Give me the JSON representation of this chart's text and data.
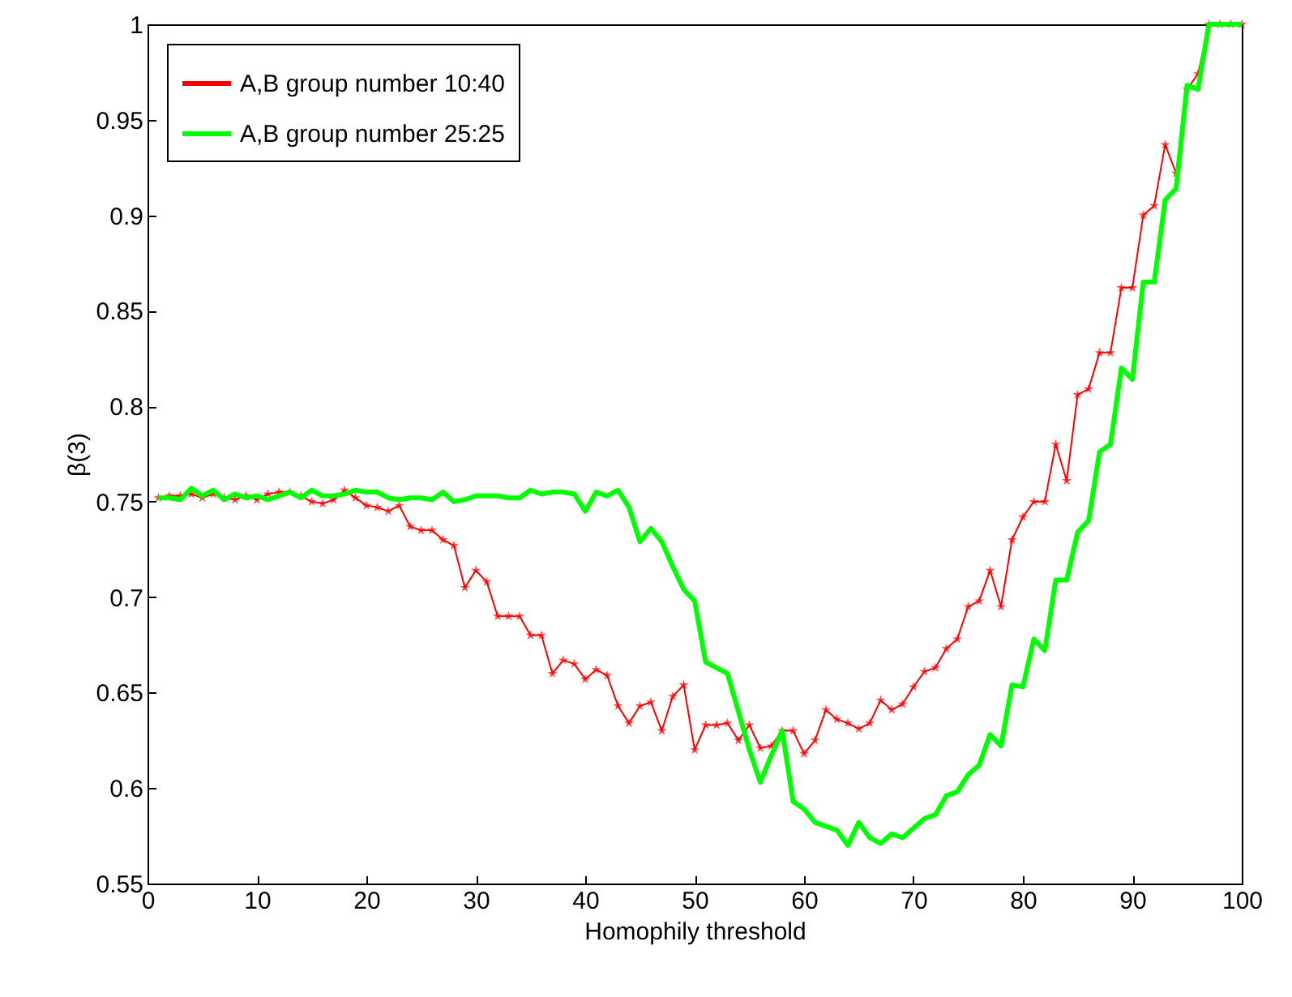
{
  "chart_data": {
    "type": "line",
    "xlabel": "Homophily threshold",
    "ylabel": "β(3)",
    "x": [
      1,
      2,
      3,
      4,
      5,
      6,
      7,
      8,
      9,
      10,
      11,
      12,
      13,
      14,
      15,
      16,
      17,
      18,
      19,
      20,
      21,
      22,
      23,
      24,
      25,
      26,
      27,
      28,
      29,
      30,
      31,
      32,
      33,
      34,
      35,
      36,
      37,
      38,
      39,
      40,
      41,
      42,
      43,
      44,
      45,
      46,
      47,
      48,
      49,
      50,
      51,
      52,
      53,
      54,
      55,
      56,
      57,
      58,
      59,
      60,
      61,
      62,
      63,
      64,
      65,
      66,
      67,
      68,
      69,
      70,
      71,
      72,
      73,
      74,
      75,
      76,
      77,
      78,
      79,
      80,
      81,
      82,
      83,
      84,
      85,
      86,
      87,
      88,
      89,
      90,
      91,
      92,
      93,
      94,
      95,
      96,
      97,
      98,
      99,
      100
    ],
    "series": [
      {
        "name": "A,B group number 10:40",
        "color": "#ff0000",
        "marker": "star",
        "values": [
          0.752,
          0.753,
          0.753,
          0.754,
          0.752,
          0.754,
          0.752,
          0.751,
          0.753,
          0.751,
          0.754,
          0.755,
          0.755,
          0.753,
          0.75,
          0.749,
          0.751,
          0.756,
          0.752,
          0.748,
          0.747,
          0.745,
          0.748,
          0.737,
          0.735,
          0.735,
          0.73,
          0.727,
          0.705,
          0.714,
          0.708,
          0.69,
          0.69,
          0.69,
          0.68,
          0.68,
          0.66,
          0.667,
          0.665,
          0.657,
          0.662,
          0.659,
          0.643,
          0.634,
          0.643,
          0.645,
          0.63,
          0.648,
          0.654,
          0.62,
          0.633,
          0.633,
          0.634,
          0.625,
          0.633,
          0.621,
          0.622,
          0.63,
          0.63,
          0.618,
          0.625,
          0.641,
          0.636,
          0.634,
          0.631,
          0.634,
          0.646,
          0.641,
          0.644,
          0.653,
          0.661,
          0.663,
          0.673,
          0.678,
          0.695,
          0.698,
          0.714,
          0.695,
          0.73,
          0.742,
          0.75,
          0.75,
          0.78,
          0.761,
          0.806,
          0.809,
          0.828,
          0.828,
          0.862,
          0.862,
          0.9,
          0.905,
          0.937,
          0.922,
          0.966,
          0.974,
          1,
          1,
          1,
          1
        ]
      },
      {
        "name": "A,B group number 25:25",
        "color": "#00ff00",
        "marker": "none",
        "values": [
          0.752,
          0.752,
          0.751,
          0.757,
          0.753,
          0.756,
          0.751,
          0.754,
          0.752,
          0.753,
          0.751,
          0.753,
          0.755,
          0.752,
          0.756,
          0.753,
          0.753,
          0.754,
          0.756,
          0.755,
          0.755,
          0.752,
          0.751,
          0.752,
          0.752,
          0.751,
          0.755,
          0.75,
          0.751,
          0.753,
          0.753,
          0.753,
          0.752,
          0.752,
          0.756,
          0.754,
          0.755,
          0.755,
          0.754,
          0.745,
          0.755,
          0.753,
          0.756,
          0.747,
          0.729,
          0.736,
          0.729,
          0.716,
          0.704,
          0.698,
          0.666,
          0.663,
          0.66,
          0.64,
          0.62,
          0.603,
          0.617,
          0.63,
          0.593,
          0.589,
          0.582,
          0.58,
          0.578,
          0.57,
          0.582,
          0.574,
          0.571,
          0.576,
          0.574,
          0.579,
          0.584,
          0.586,
          0.596,
          0.598,
          0.607,
          0.612,
          0.628,
          0.622,
          0.654,
          0.653,
          0.678,
          0.672,
          0.709,
          0.709,
          0.734,
          0.74,
          0.776,
          0.78,
          0.82,
          0.814,
          0.865,
          0.865,
          0.908,
          0.914,
          0.968,
          0.966,
          1,
          1,
          1,
          1
        ]
      }
    ],
    "xlim": [
      0,
      100
    ],
    "xticks": [
      0,
      10,
      20,
      30,
      40,
      50,
      60,
      70,
      80,
      90,
      100
    ],
    "ylim": [
      0.55,
      1
    ],
    "yticks": [
      0.55,
      0.6,
      0.65,
      0.7,
      0.75,
      0.8,
      0.85,
      0.9,
      0.95,
      1
    ],
    "grid": false,
    "legend": "top left"
  }
}
